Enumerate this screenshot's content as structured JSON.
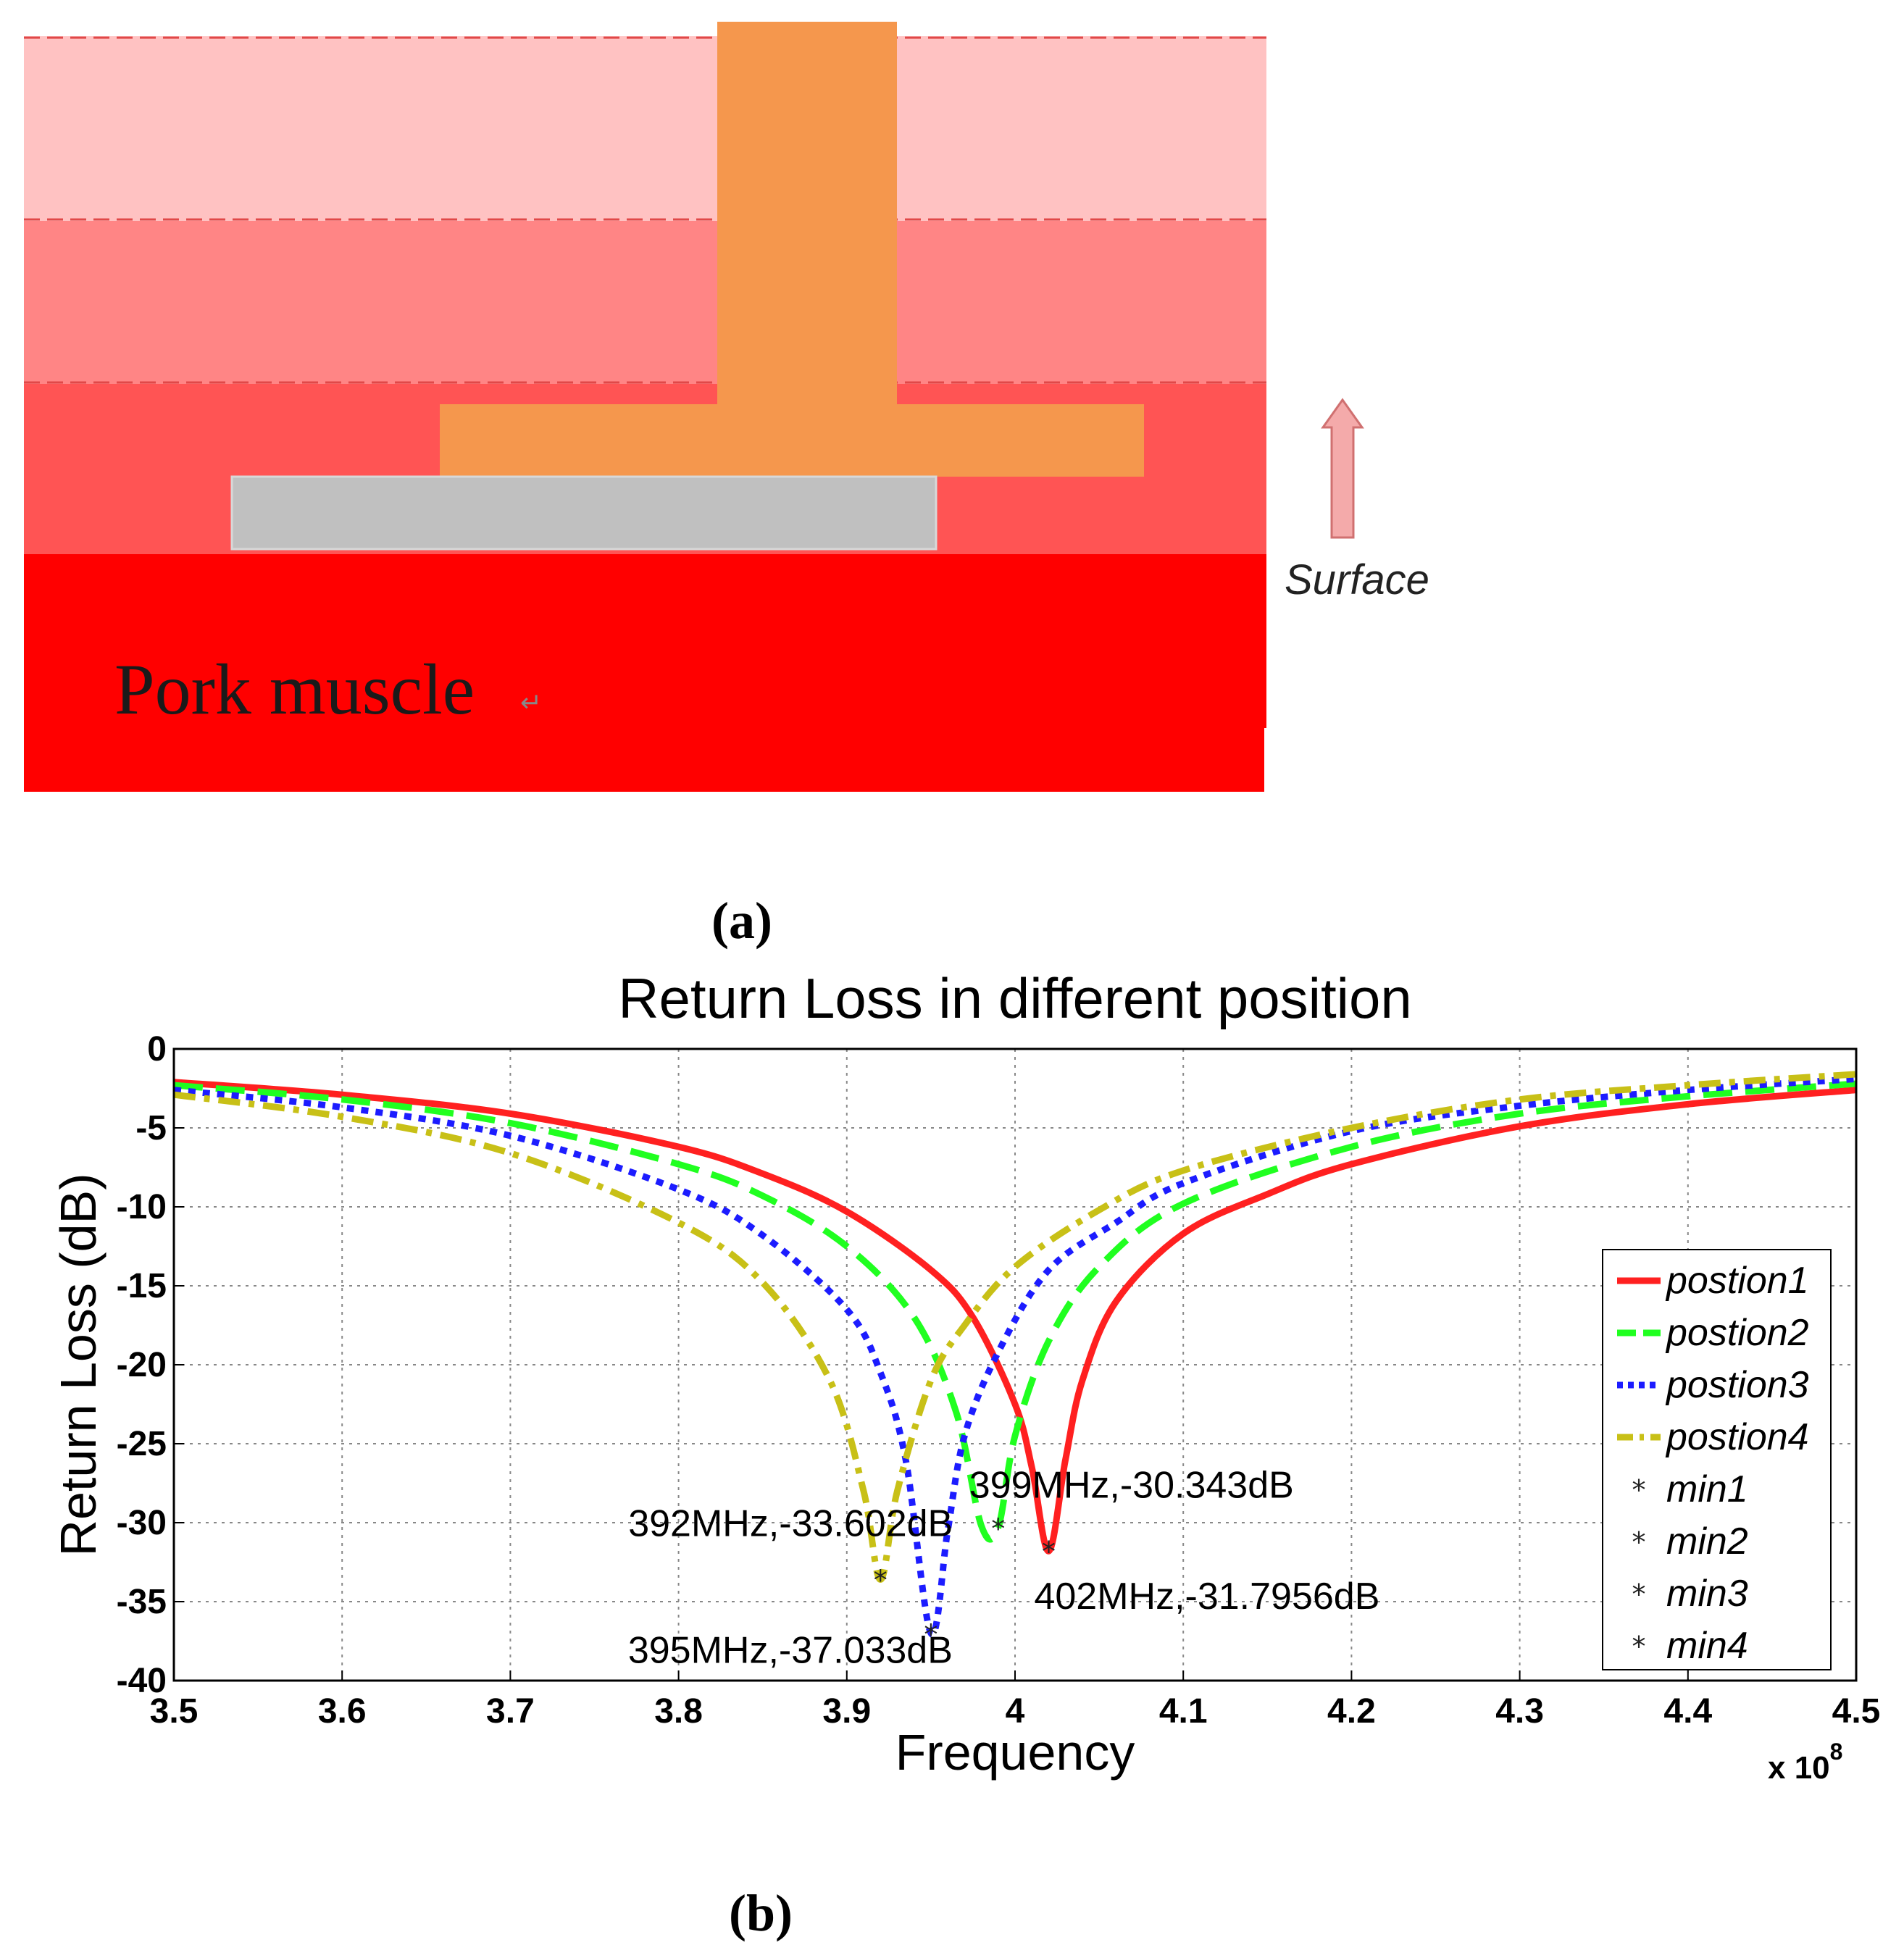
{
  "panel_a": {
    "caption": "(a)",
    "tissue_label": "Pork muscle",
    "arrow_label": "Surface",
    "colors": {
      "layer1": "#ffc2c2",
      "layer2": "#ff8585",
      "layer3": "#ff5454",
      "muscle": "#ff0000",
      "antenna": "#f5974d",
      "ground": "#c0c0c0",
      "arrow": "#f4aaaa"
    }
  },
  "panel_b": {
    "caption": "(b)",
    "exponent_label": "x 10",
    "exponent_power": "8"
  },
  "chart_data": {
    "type": "line",
    "title": "Return Loss in different position",
    "xlabel": "Frequency",
    "ylabel": "Return Loss (dB)",
    "xlim": [
      3.5,
      4.5
    ],
    "ylim": [
      -40,
      0
    ],
    "x_ticks": [
      "3.5",
      "3.6",
      "3.7",
      "3.8",
      "3.9",
      "4",
      "4.1",
      "4.2",
      "4.3",
      "4.4",
      "4.5"
    ],
    "y_ticks": [
      "0",
      "-5",
      "-10",
      "-15",
      "-20",
      "-25",
      "-30",
      "-35",
      "-40"
    ],
    "x_scale_note": "x 10^8",
    "grid": true,
    "legend_position": "right",
    "series": [
      {
        "name": "postion1",
        "style": "solid",
        "color": "#ff2020",
        "points": [
          [
            3.5,
            -2.1
          ],
          [
            3.6,
            -2.9
          ],
          [
            3.7,
            -4.1
          ],
          [
            3.8,
            -6.2
          ],
          [
            3.85,
            -7.9
          ],
          [
            3.9,
            -10.3
          ],
          [
            3.95,
            -14.0
          ],
          [
            3.975,
            -17.0
          ],
          [
            4.0,
            -22.5
          ],
          [
            4.01,
            -26.5
          ],
          [
            4.02,
            -31.8
          ],
          [
            4.03,
            -26.0
          ],
          [
            4.04,
            -21.0
          ],
          [
            4.06,
            -16.0
          ],
          [
            4.1,
            -11.7
          ],
          [
            4.15,
            -9.2
          ],
          [
            4.2,
            -7.3
          ],
          [
            4.3,
            -4.9
          ],
          [
            4.4,
            -3.5
          ],
          [
            4.5,
            -2.6
          ]
        ]
      },
      {
        "name": "postion2",
        "style": "dashed",
        "color": "#20ff20",
        "points": [
          [
            3.5,
            -2.3
          ],
          [
            3.6,
            -3.2
          ],
          [
            3.7,
            -4.7
          ],
          [
            3.8,
            -7.3
          ],
          [
            3.85,
            -9.3
          ],
          [
            3.9,
            -12.5
          ],
          [
            3.94,
            -17.0
          ],
          [
            3.965,
            -23.0
          ],
          [
            3.98,
            -30.2
          ],
          [
            3.99,
            -30.3
          ],
          [
            4.0,
            -24.5
          ],
          [
            4.02,
            -18.5
          ],
          [
            4.05,
            -13.8
          ],
          [
            4.1,
            -9.8
          ],
          [
            4.2,
            -6.2
          ],
          [
            4.3,
            -4.1
          ],
          [
            4.4,
            -3.0
          ],
          [
            4.5,
            -2.2
          ]
        ]
      },
      {
        "name": "postion3",
        "style": "dotted",
        "color": "#1c1cff",
        "points": [
          [
            3.5,
            -2.6
          ],
          [
            3.6,
            -3.7
          ],
          [
            3.7,
            -5.5
          ],
          [
            3.8,
            -8.9
          ],
          [
            3.85,
            -11.8
          ],
          [
            3.9,
            -16.5
          ],
          [
            3.92,
            -20.5
          ],
          [
            3.935,
            -26.0
          ],
          [
            3.95,
            -37.0
          ],
          [
            3.96,
            -30.5
          ],
          [
            3.97,
            -24.5
          ],
          [
            3.99,
            -19.2
          ],
          [
            4.02,
            -14.0
          ],
          [
            4.06,
            -11.0
          ],
          [
            4.1,
            -8.5
          ],
          [
            4.2,
            -5.2
          ],
          [
            4.3,
            -3.6
          ],
          [
            4.4,
            -2.6
          ],
          [
            4.5,
            -1.9
          ]
        ]
      },
      {
        "name": "postion4",
        "style": "dashdot",
        "color": "#c8c017",
        "points": [
          [
            3.5,
            -2.9
          ],
          [
            3.6,
            -4.3
          ],
          [
            3.7,
            -6.6
          ],
          [
            3.8,
            -11.0
          ],
          [
            3.85,
            -14.8
          ],
          [
            3.89,
            -21.0
          ],
          [
            3.91,
            -28.0
          ],
          [
            3.92,
            -33.6
          ],
          [
            3.93,
            -28.0
          ],
          [
            3.95,
            -21.0
          ],
          [
            3.97,
            -17.5
          ],
          [
            4.0,
            -13.8
          ],
          [
            4.05,
            -10.2
          ],
          [
            4.1,
            -7.7
          ],
          [
            4.2,
            -5.0
          ],
          [
            4.3,
            -3.2
          ],
          [
            4.4,
            -2.3
          ],
          [
            4.5,
            -1.6
          ]
        ]
      }
    ],
    "markers": [
      {
        "name": "min1",
        "x": 4.02,
        "y": -31.7956,
        "label": "402MHz,-31.7956dB"
      },
      {
        "name": "min2",
        "x": 3.99,
        "y": -30.343,
        "label": "399MHz,-30.343dB"
      },
      {
        "name": "min3",
        "x": 3.95,
        "y": -37.033,
        "label": "395MHz,-37.033dB"
      },
      {
        "name": "min4",
        "x": 3.92,
        "y": -33.602,
        "label": "392MHz,-33.602dB"
      }
    ]
  }
}
